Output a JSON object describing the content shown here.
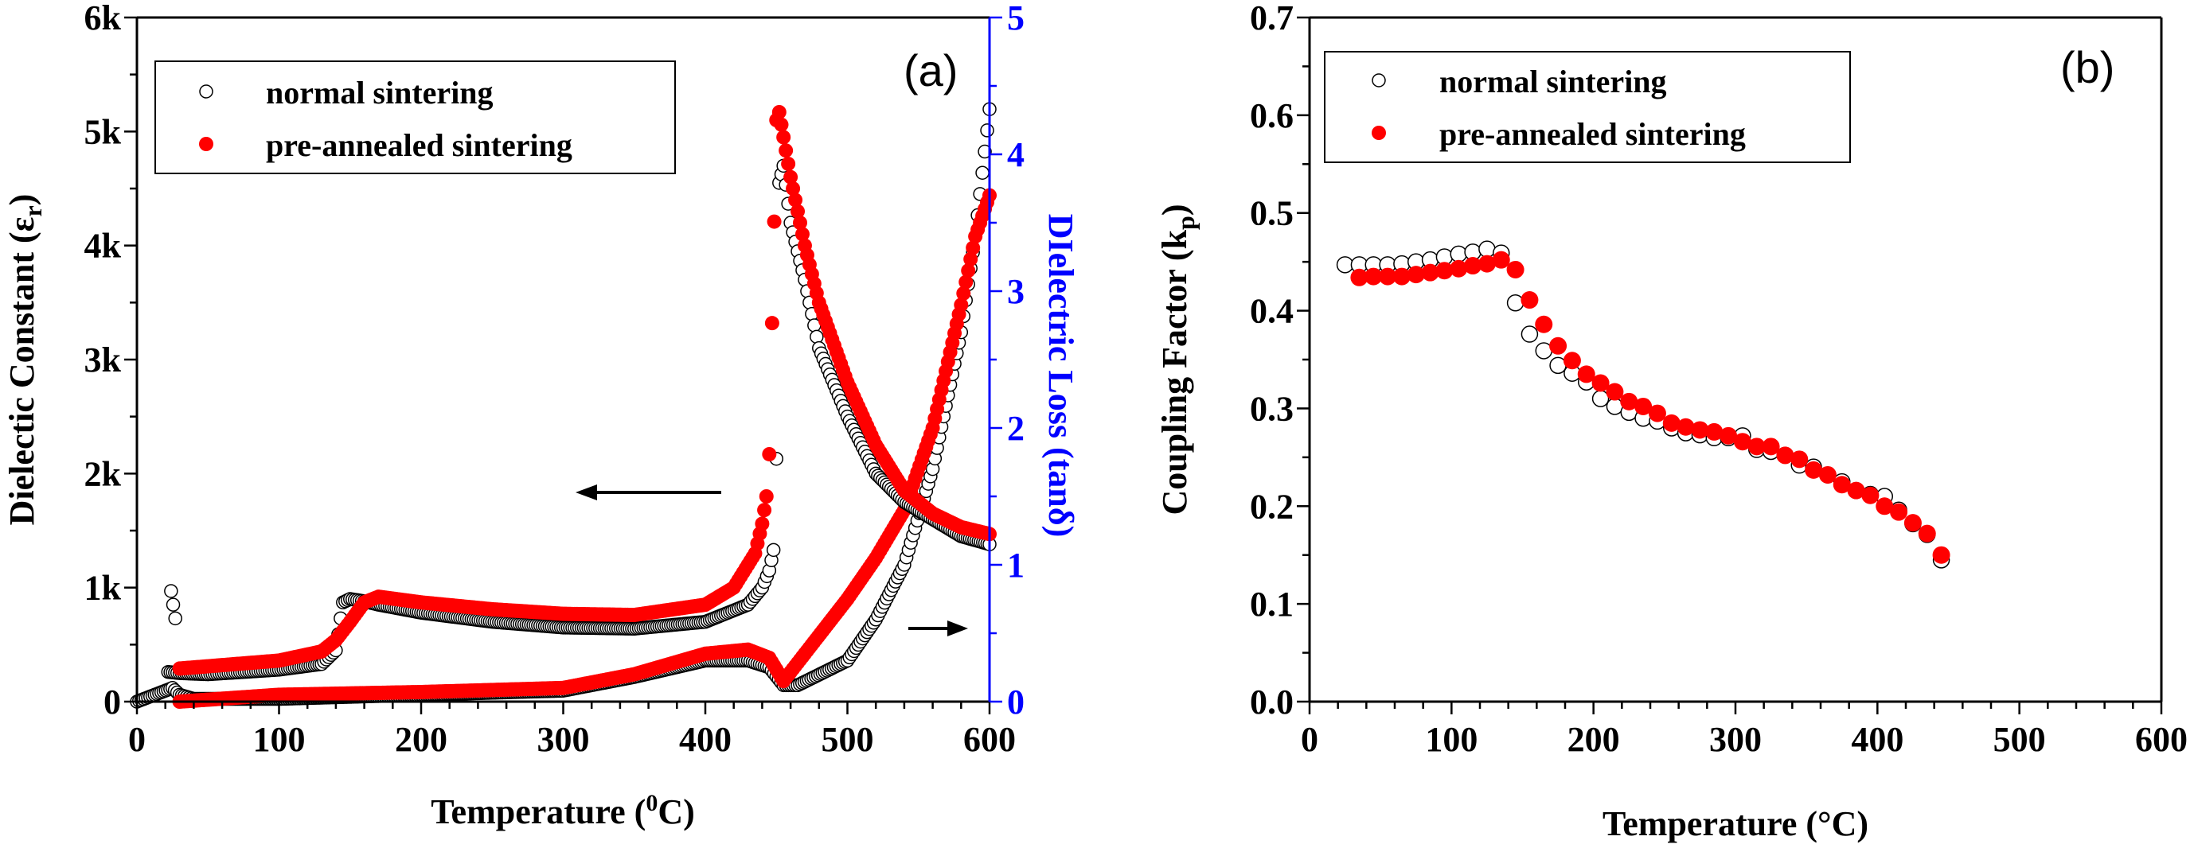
{
  "chart_data": [
    {
      "type": "scatter",
      "panel_label": "(a)",
      "xlabel": "Temperature (",
      "xlabel_sup": "0",
      "xlabel_end": "C)",
      "ylabel": "Dielectic Constant (ε",
      "ylabel_sub": "r",
      "ylabel_end": ")",
      "y2label": "DIelectric Loss (tanδ)",
      "xlim": [
        0,
        600
      ],
      "ylim": [
        0,
        6000
      ],
      "y2lim": [
        0,
        5
      ],
      "xticks": [
        "0",
        "100",
        "200",
        "300",
        "400",
        "500",
        "600"
      ],
      "yticks": [
        "0",
        "1k",
        "2k",
        "3k",
        "4k",
        "5k",
        "6k"
      ],
      "y2ticks": [
        "0",
        "1",
        "2",
        "3",
        "4",
        "5"
      ],
      "colors": {
        "normal": "#ffffff",
        "pre": "#ff0000",
        "right_axis": "#0000ff"
      },
      "legend_position": "top-left",
      "legend": [
        "normal sintering",
        "pre-annealed sintering"
      ],
      "series": [
        {
          "name": "normal sintering",
          "axis": "left",
          "marker": "open-circle",
          "x": [
            24,
            27,
            22,
            30,
            50,
            100,
            130,
            140,
            145,
            150,
            160,
            170,
            200,
            250,
            300,
            350,
            400,
            430,
            440,
            445,
            448,
            450,
            452,
            455,
            460,
            470,
            480,
            500,
            520,
            540,
            560,
            580,
            600
          ],
          "y": [
            970,
            730,
            260,
            250,
            240,
            280,
            330,
            450,
            870,
            900,
            880,
            850,
            780,
            700,
            650,
            640,
            700,
            850,
            1000,
            1150,
            1330,
            2130,
            4550,
            4700,
            4200,
            3700,
            3100,
            2500,
            2000,
            1750,
            1600,
            1450,
            1380
          ]
        },
        {
          "name": "pre-annealed sintering",
          "axis": "left",
          "marker": "filled-circle",
          "x": [
            30,
            50,
            100,
            130,
            140,
            150,
            160,
            170,
            200,
            250,
            300,
            350,
            400,
            420,
            435,
            440,
            443,
            445,
            447,
            450,
            452,
            455,
            460,
            470,
            480,
            500,
            520,
            540,
            560,
            580,
            600
          ],
          "y": [
            290,
            310,
            360,
            440,
            540,
            700,
            870,
            920,
            870,
            810,
            770,
            760,
            850,
            1000,
            1300,
            1560,
            1800,
            2170,
            3320,
            5100,
            5170,
            4950,
            4600,
            4000,
            3500,
            2800,
            2250,
            1850,
            1650,
            1530,
            1470
          ]
        },
        {
          "name": "normal sintering",
          "axis": "right",
          "marker": "open-circle",
          "x": [
            0,
            25,
            30,
            40,
            100,
            200,
            300,
            350,
            400,
            430,
            445,
            455,
            465,
            500,
            520,
            540,
            560,
            580,
            590,
            600
          ],
          "y": [
            0,
            0.1,
            0.05,
            0.02,
            0.02,
            0.05,
            0.08,
            0.18,
            0.3,
            0.3,
            0.25,
            0.12,
            0.12,
            0.3,
            0.6,
            1.0,
            1.7,
            2.7,
            3.4,
            4.33
          ]
        },
        {
          "name": "pre-annealed sintering",
          "axis": "right",
          "marker": "filled-circle",
          "x": [
            30,
            100,
            200,
            300,
            350,
            400,
            430,
            445,
            455,
            470,
            500,
            520,
            540,
            560,
            580,
            590,
            600
          ],
          "y": [
            0,
            0.05,
            0.07,
            0.1,
            0.2,
            0.35,
            0.38,
            0.32,
            0.15,
            0.35,
            0.75,
            1.05,
            1.4,
            2.0,
            2.9,
            3.4,
            3.7
          ]
        }
      ]
    },
    {
      "type": "scatter",
      "panel_label": "(b)",
      "xlabel": "Temperature (°C)",
      "ylabel": "Coupling Factor (k",
      "ylabel_sub": "p",
      "ylabel_end": ")",
      "xlim": [
        0,
        600
      ],
      "ylim": [
        0,
        0.7
      ],
      "xticks": [
        "0",
        "100",
        "200",
        "300",
        "400",
        "500",
        "600"
      ],
      "yticks": [
        "0.0",
        "0.1",
        "0.2",
        "0.3",
        "0.4",
        "0.5",
        "0.6",
        "0.7"
      ],
      "legend_position": "top-left",
      "legend": [
        "normal sintering",
        "pre-annealed sintering"
      ],
      "series": [
        {
          "name": "normal sintering",
          "marker": "open-circle",
          "x": [
            25,
            35,
            45,
            55,
            65,
            75,
            85,
            95,
            105,
            115,
            125,
            135,
            145,
            155,
            165,
            175,
            185,
            195,
            205,
            215,
            225,
            235,
            245,
            255,
            265,
            275,
            285,
            295,
            305,
            315,
            325,
            335,
            345,
            355,
            365,
            375,
            385,
            395,
            405,
            415,
            425,
            435,
            445
          ],
          "y": [
            0.447,
            0.447,
            0.447,
            0.447,
            0.448,
            0.45,
            0.452,
            0.455,
            0.458,
            0.46,
            0.463,
            0.459,
            0.408,
            0.376,
            0.359,
            0.344,
            0.336,
            0.327,
            0.31,
            0.302,
            0.296,
            0.29,
            0.287,
            0.28,
            0.275,
            0.273,
            0.27,
            0.27,
            0.272,
            0.258,
            0.256,
            0.252,
            0.242,
            0.24,
            0.232,
            0.225,
            0.216,
            0.212,
            0.21,
            0.196,
            0.182,
            0.171,
            0.145
          ]
        },
        {
          "name": "pre-annealed sintering",
          "marker": "filled-circle",
          "x": [
            35,
            45,
            55,
            65,
            75,
            85,
            95,
            105,
            115,
            125,
            135,
            145,
            155,
            165,
            175,
            185,
            195,
            205,
            215,
            225,
            235,
            245,
            255,
            265,
            275,
            285,
            295,
            305,
            315,
            325,
            335,
            345,
            355,
            365,
            375,
            385,
            395,
            405,
            415,
            425,
            435,
            445
          ],
          "y": [
            0.434,
            0.435,
            0.435,
            0.435,
            0.437,
            0.439,
            0.441,
            0.443,
            0.446,
            0.448,
            0.452,
            0.442,
            0.411,
            0.386,
            0.364,
            0.349,
            0.335,
            0.326,
            0.317,
            0.307,
            0.302,
            0.295,
            0.285,
            0.281,
            0.278,
            0.276,
            0.272,
            0.266,
            0.261,
            0.261,
            0.252,
            0.248,
            0.237,
            0.232,
            0.222,
            0.216,
            0.211,
            0.2,
            0.194,
            0.183,
            0.172,
            0.15
          ]
        }
      ]
    }
  ]
}
